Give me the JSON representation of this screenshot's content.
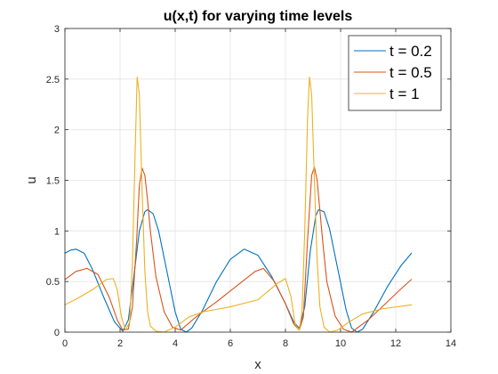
{
  "chart_data": {
    "type": "line",
    "title": "u(x,t) for varying time levels",
    "xlabel": "x",
    "ylabel": "u",
    "xlim": [
      0,
      14
    ],
    "ylim": [
      0,
      3
    ],
    "xticks": [
      0,
      2,
      4,
      6,
      8,
      10,
      12,
      14
    ],
    "yticks": [
      0,
      0.5,
      1,
      1.5,
      2,
      2.5,
      3
    ],
    "xtick_labels": [
      "0",
      "2",
      "4",
      "6",
      "8",
      "10",
      "12",
      "14"
    ],
    "ytick_labels": [
      "0",
      "0.5",
      "1",
      "1.5",
      "2",
      "2.5",
      "3"
    ],
    "grid": true,
    "legend_position": "top-right",
    "series": [
      {
        "name": "t = 0.2",
        "color": "#0072bd",
        "x": [
          0,
          0.2,
          0.4,
          0.7,
          1.0,
          1.4,
          1.8,
          2.1,
          2.3,
          2.5,
          2.7,
          2.9,
          3.0,
          3.2,
          3.4,
          3.7,
          4.0,
          4.2,
          4.4,
          4.6,
          5.0,
          5.5,
          6.0,
          6.5,
          7.0,
          7.5,
          8.0,
          8.3,
          8.5,
          8.7,
          8.9,
          9.1,
          9.2,
          9.4,
          9.6,
          9.9,
          10.2,
          10.4,
          10.6,
          10.8,
          11.2,
          11.7,
          12.2,
          12.57
        ],
        "y": [
          0.78,
          0.81,
          0.82,
          0.78,
          0.62,
          0.35,
          0.1,
          0.01,
          0.12,
          0.55,
          1.0,
          1.19,
          1.21,
          1.17,
          1.0,
          0.6,
          0.2,
          0.03,
          0.0,
          0.04,
          0.22,
          0.5,
          0.72,
          0.82,
          0.76,
          0.55,
          0.28,
          0.1,
          0.04,
          0.25,
          0.8,
          1.15,
          1.21,
          1.19,
          1.02,
          0.62,
          0.22,
          0.04,
          0.0,
          0.03,
          0.2,
          0.45,
          0.66,
          0.78
        ]
      },
      {
        "name": "t = 0.5",
        "color": "#d95319",
        "x": [
          0,
          0.4,
          0.8,
          1.2,
          1.6,
          1.9,
          2.1,
          2.3,
          2.45,
          2.6,
          2.7,
          2.8,
          2.9,
          3.0,
          3.1,
          3.3,
          3.6,
          3.9,
          4.2,
          4.8,
          5.5,
          6.2,
          6.9,
          7.2,
          7.6,
          8.0,
          8.3,
          8.5,
          8.65,
          8.8,
          8.95,
          9.05,
          9.15,
          9.25,
          9.35,
          9.5,
          9.8,
          10.1,
          10.4,
          11.0,
          11.7,
          12.2,
          12.57
        ],
        "y": [
          0.52,
          0.6,
          0.63,
          0.57,
          0.35,
          0.12,
          0.02,
          0.03,
          0.25,
          0.9,
          1.45,
          1.62,
          1.55,
          1.3,
          1.0,
          0.55,
          0.2,
          0.05,
          0.02,
          0.16,
          0.3,
          0.45,
          0.6,
          0.63,
          0.5,
          0.28,
          0.08,
          0.02,
          0.15,
          0.9,
          1.55,
          1.63,
          1.5,
          1.2,
          0.9,
          0.5,
          0.16,
          0.03,
          0.0,
          0.12,
          0.3,
          0.43,
          0.52
        ]
      },
      {
        "name": "t = 1",
        "color": "#edb120",
        "x": [
          0,
          0.5,
          1.0,
          1.5,
          1.75,
          1.9,
          2.05,
          2.2,
          2.35,
          2.45,
          2.55,
          2.62,
          2.7,
          2.8,
          2.9,
          3.0,
          3.1,
          3.3,
          3.6,
          4.0,
          4.5,
          5.0,
          6.0,
          7.0,
          7.7,
          8.0,
          8.2,
          8.35,
          8.5,
          8.6,
          8.7,
          8.8,
          8.87,
          8.95,
          9.05,
          9.15,
          9.25,
          9.4,
          9.6,
          9.9,
          10.3,
          10.8,
          11.5,
          12.57
        ],
        "y": [
          0.27,
          0.34,
          0.42,
          0.52,
          0.53,
          0.42,
          0.15,
          0.02,
          0.1,
          0.7,
          1.8,
          2.52,
          2.35,
          1.4,
          0.6,
          0.2,
          0.06,
          0.01,
          0.0,
          0.05,
          0.15,
          0.2,
          0.25,
          0.32,
          0.48,
          0.53,
          0.35,
          0.08,
          0.02,
          0.2,
          1.0,
          2.1,
          2.52,
          2.35,
          1.5,
          0.7,
          0.25,
          0.05,
          0.0,
          0.02,
          0.1,
          0.18,
          0.23,
          0.27
        ]
      }
    ]
  }
}
